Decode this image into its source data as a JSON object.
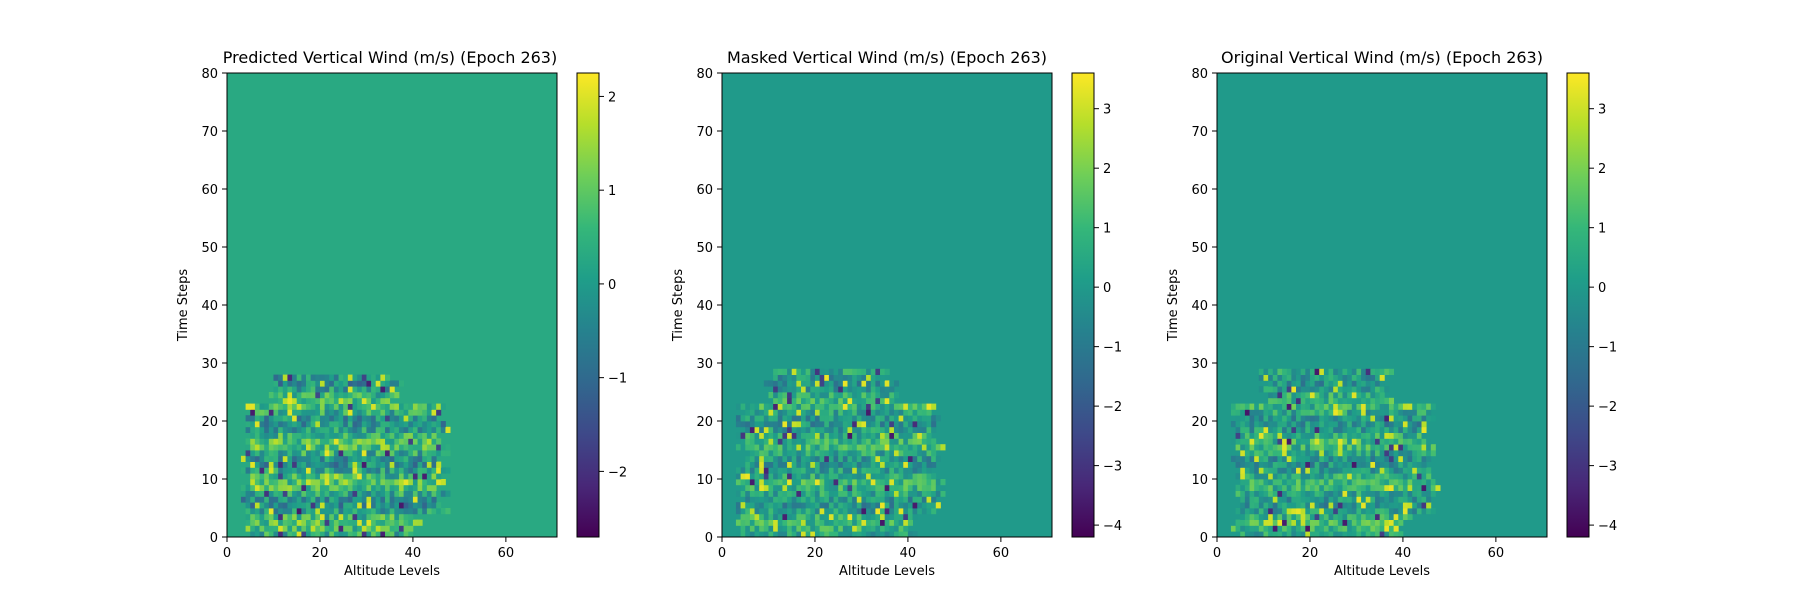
{
  "chart_data": [
    {
      "type": "heatmap",
      "title": "Predicted Vertical Wind (m/s) (Epoch 263)",
      "xlabel": "Altitude Levels",
      "ylabel": "Time Steps",
      "xlim": [
        0,
        71
      ],
      "ylim": [
        0,
        80
      ],
      "x_ticks": [
        0,
        20,
        40,
        60
      ],
      "y_ticks": [
        0,
        10,
        20,
        30,
        40,
        50,
        60,
        70,
        80
      ],
      "colorbar": {
        "min": -2.7,
        "max": 2.25,
        "ticks": [
          -2,
          -1,
          0,
          1,
          2
        ],
        "tick_labels": [
          "−2",
          "−1",
          "0",
          "1",
          "2"
        ]
      },
      "colormap": [
        "#440154",
        "#482878",
        "#3e4989",
        "#31688e",
        "#26828e",
        "#1f9e89",
        "#35b779",
        "#6ece58",
        "#b5de2b",
        "#fde725"
      ],
      "background_value": 0.3,
      "active_region": {
        "time_max": 28,
        "altitude_min": 3,
        "altitude_max": 48
      },
      "noise_amplitude": 1.1
    },
    {
      "type": "heatmap",
      "title": "Masked Vertical Wind (m/s) (Epoch 263)",
      "xlabel": "Altitude Levels",
      "ylabel": "Time Steps",
      "xlim": [
        0,
        71
      ],
      "ylim": [
        0,
        80
      ],
      "x_ticks": [
        0,
        20,
        40,
        60
      ],
      "y_ticks": [
        0,
        10,
        20,
        30,
        40,
        50,
        60,
        70,
        80
      ],
      "colorbar": {
        "min": -4.2,
        "max": 3.6,
        "ticks": [
          -4,
          -3,
          -2,
          -1,
          0,
          1,
          2,
          3
        ],
        "tick_labels": [
          "−4",
          "−3",
          "−2",
          "−1",
          "0",
          "1",
          "2",
          "3"
        ]
      },
      "colormap": [
        "#440154",
        "#482878",
        "#3e4989",
        "#31688e",
        "#26828e",
        "#1f9e89",
        "#35b779",
        "#6ece58",
        "#b5de2b",
        "#fde725"
      ],
      "background_value": 0.0,
      "active_region": {
        "time_max": 29,
        "altitude_min": 3,
        "altitude_max": 48
      },
      "noise_amplitude": 1.4
    },
    {
      "type": "heatmap",
      "title": "Original Vertical Wind (m/s) (Epoch 263)",
      "xlabel": "Altitude Levels",
      "ylabel": "Time Steps",
      "xlim": [
        0,
        71
      ],
      "ylim": [
        0,
        80
      ],
      "x_ticks": [
        0,
        20,
        40,
        60
      ],
      "y_ticks": [
        0,
        10,
        20,
        30,
        40,
        50,
        60,
        70,
        80
      ],
      "colorbar": {
        "min": -4.2,
        "max": 3.6,
        "ticks": [
          -4,
          -3,
          -2,
          -1,
          0,
          1,
          2,
          3
        ],
        "tick_labels": [
          "−4",
          "−3",
          "−2",
          "−1",
          "0",
          "1",
          "2",
          "3"
        ]
      },
      "colormap": [
        "#440154",
        "#482878",
        "#3e4989",
        "#31688e",
        "#26828e",
        "#1f9e89",
        "#35b779",
        "#6ece58",
        "#b5de2b",
        "#fde725"
      ],
      "background_value": 0.0,
      "active_region": {
        "time_max": 29,
        "altitude_min": 3,
        "altitude_max": 48
      },
      "noise_amplitude": 1.4
    }
  ]
}
